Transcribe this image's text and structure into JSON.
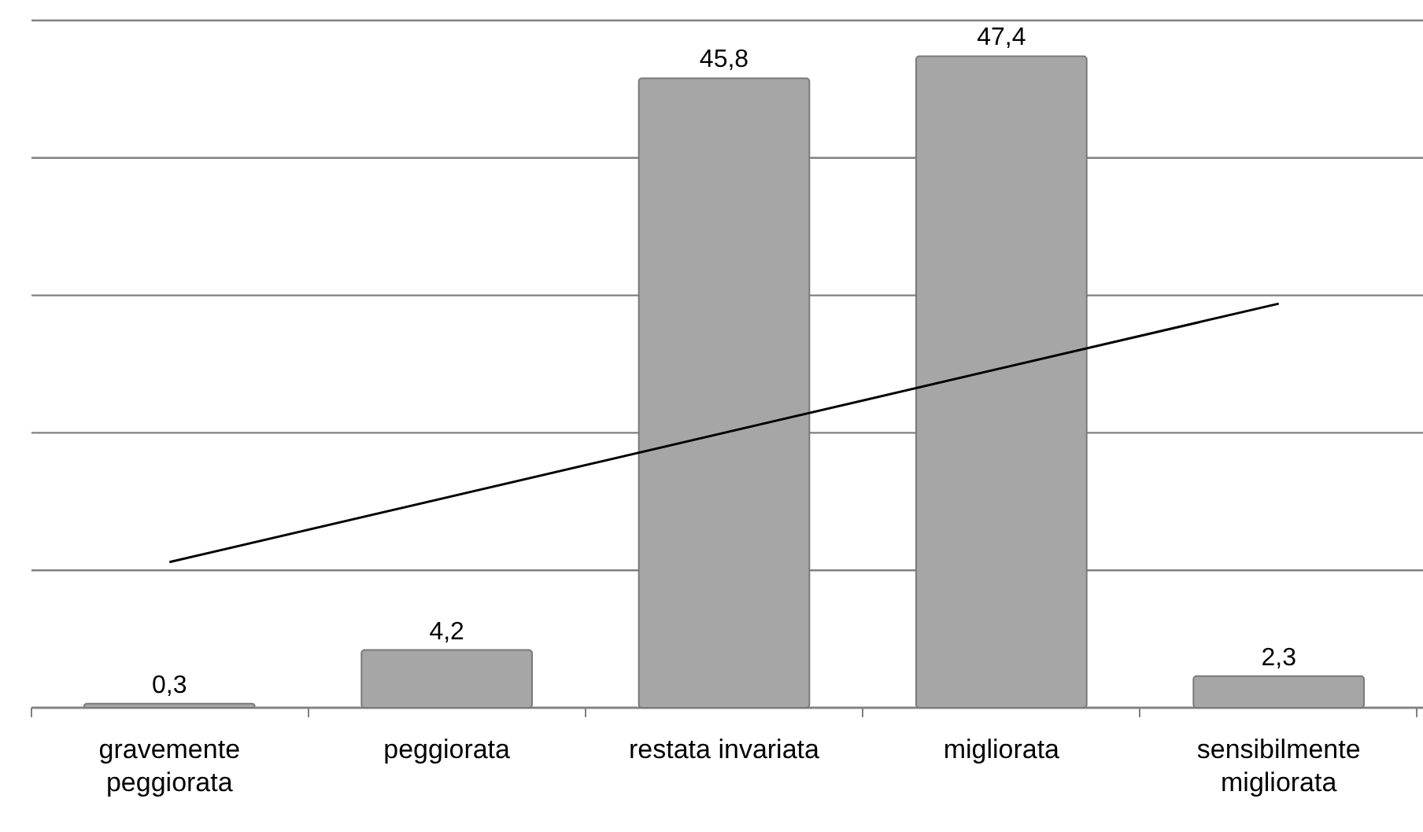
{
  "chart_data": {
    "type": "bar",
    "categories": [
      "gravemente peggiorata",
      "peggiorata",
      "restata invariata",
      "migliorata",
      "sensibilmente migliorata"
    ],
    "series": [
      {
        "color": "#a6a6a6",
        "values": [
          0.3,
          4.2,
          45.8,
          47.4,
          2.3
        ],
        "value_labels": [
          "0,3",
          "4,2",
          "45,8",
          "47,4",
          "2,3"
        ]
      },
      {
        "type": "line",
        "color": "#000000",
        "x": [
          "gravemente peggiorata",
          "sensibilmente migliorata"
        ],
        "values": [
          10.6,
          29.4
        ]
      }
    ],
    "ylim": [
      0,
      50
    ],
    "yticks": [
      {
        "value": 0,
        "label": null
      },
      {
        "value": 10,
        "label": null
      },
      {
        "value": 20,
        "label": null
      },
      {
        "value": 30,
        "label": null
      },
      {
        "value": 40,
        "label": null
      },
      {
        "value": 50,
        "label": null
      }
    ],
    "tick_labels": "x",
    "grid": "y"
  }
}
